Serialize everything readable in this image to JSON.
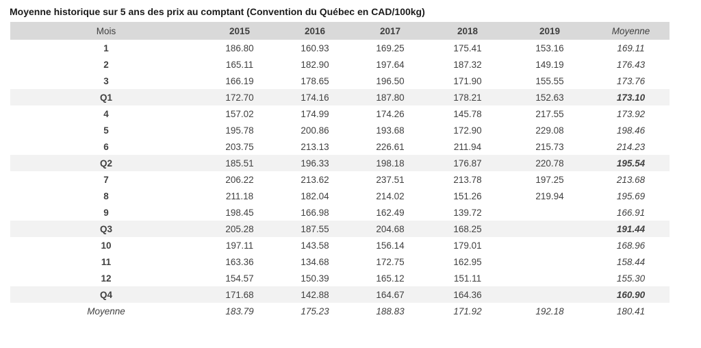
{
  "title": "Moyenne historique sur 5 ans des prix au comptant (Convention du Québec en CAD/100kg)",
  "colors": {
    "header_bg": "#d9d9d9",
    "quarter_row_bg": "#f2f2f2",
    "text": "#404040",
    "title_text": "#1a1a1a",
    "background": "#ffffff"
  },
  "chart_data": {
    "type": "table",
    "title": "Moyenne historique sur 5 ans des prix au comptant (Convention du Québec en CAD/100kg)",
    "columns": [
      "Mois",
      "2015",
      "2016",
      "2017",
      "2018",
      "2019",
      "Moyenne"
    ],
    "rows": [
      {
        "label": "1",
        "type": "month",
        "values": [
          "186.80",
          "160.93",
          "169.25",
          "175.41",
          "153.16"
        ],
        "moyenne": "169.11"
      },
      {
        "label": "2",
        "type": "month",
        "values": [
          "165.11",
          "182.90",
          "197.64",
          "187.32",
          "149.19"
        ],
        "moyenne": "176.43"
      },
      {
        "label": "3",
        "type": "month",
        "values": [
          "166.19",
          "178.65",
          "196.50",
          "171.90",
          "155.55"
        ],
        "moyenne": "173.76"
      },
      {
        "label": "Q1",
        "type": "quarter",
        "values": [
          "172.70",
          "174.16",
          "187.80",
          "178.21",
          "152.63"
        ],
        "moyenne": "173.10"
      },
      {
        "label": "4",
        "type": "month",
        "values": [
          "157.02",
          "174.99",
          "174.26",
          "145.78",
          "217.55"
        ],
        "moyenne": "173.92"
      },
      {
        "label": "5",
        "type": "month",
        "values": [
          "195.78",
          "200.86",
          "193.68",
          "172.90",
          "229.08"
        ],
        "moyenne": "198.46"
      },
      {
        "label": "6",
        "type": "month",
        "values": [
          "203.75",
          "213.13",
          "226.61",
          "211.94",
          "215.73"
        ],
        "moyenne": "214.23"
      },
      {
        "label": "Q2",
        "type": "quarter",
        "values": [
          "185.51",
          "196.33",
          "198.18",
          "176.87",
          "220.78"
        ],
        "moyenne": "195.54"
      },
      {
        "label": "7",
        "type": "month",
        "values": [
          "206.22",
          "213.62",
          "237.51",
          "213.78",
          "197.25"
        ],
        "moyenne": "213.68"
      },
      {
        "label": "8",
        "type": "month",
        "values": [
          "211.18",
          "182.04",
          "214.02",
          "151.26",
          "219.94"
        ],
        "moyenne": "195.69"
      },
      {
        "label": "9",
        "type": "month",
        "values": [
          "198.45",
          "166.98",
          "162.49",
          "139.72",
          ""
        ],
        "moyenne": "166.91"
      },
      {
        "label": "Q3",
        "type": "quarter",
        "values": [
          "205.28",
          "187.55",
          "204.68",
          "168.25",
          ""
        ],
        "moyenne": "191.44"
      },
      {
        "label": "10",
        "type": "month",
        "values": [
          "197.11",
          "143.58",
          "156.14",
          "179.01",
          ""
        ],
        "moyenne": "168.96"
      },
      {
        "label": "11",
        "type": "month",
        "values": [
          "163.36",
          "134.68",
          "172.75",
          "162.95",
          ""
        ],
        "moyenne": "158.44"
      },
      {
        "label": "12",
        "type": "month",
        "values": [
          "154.57",
          "150.39",
          "165.12",
          "151.11",
          ""
        ],
        "moyenne": "155.30"
      },
      {
        "label": "Q4",
        "type": "quarter",
        "values": [
          "171.68",
          "142.88",
          "164.67",
          "164.36",
          ""
        ],
        "moyenne": "160.90"
      },
      {
        "label": "Moyenne",
        "type": "average",
        "values": [
          "183.79",
          "175.23",
          "188.83",
          "171.92",
          "192.18"
        ],
        "moyenne": "180.41"
      }
    ]
  }
}
